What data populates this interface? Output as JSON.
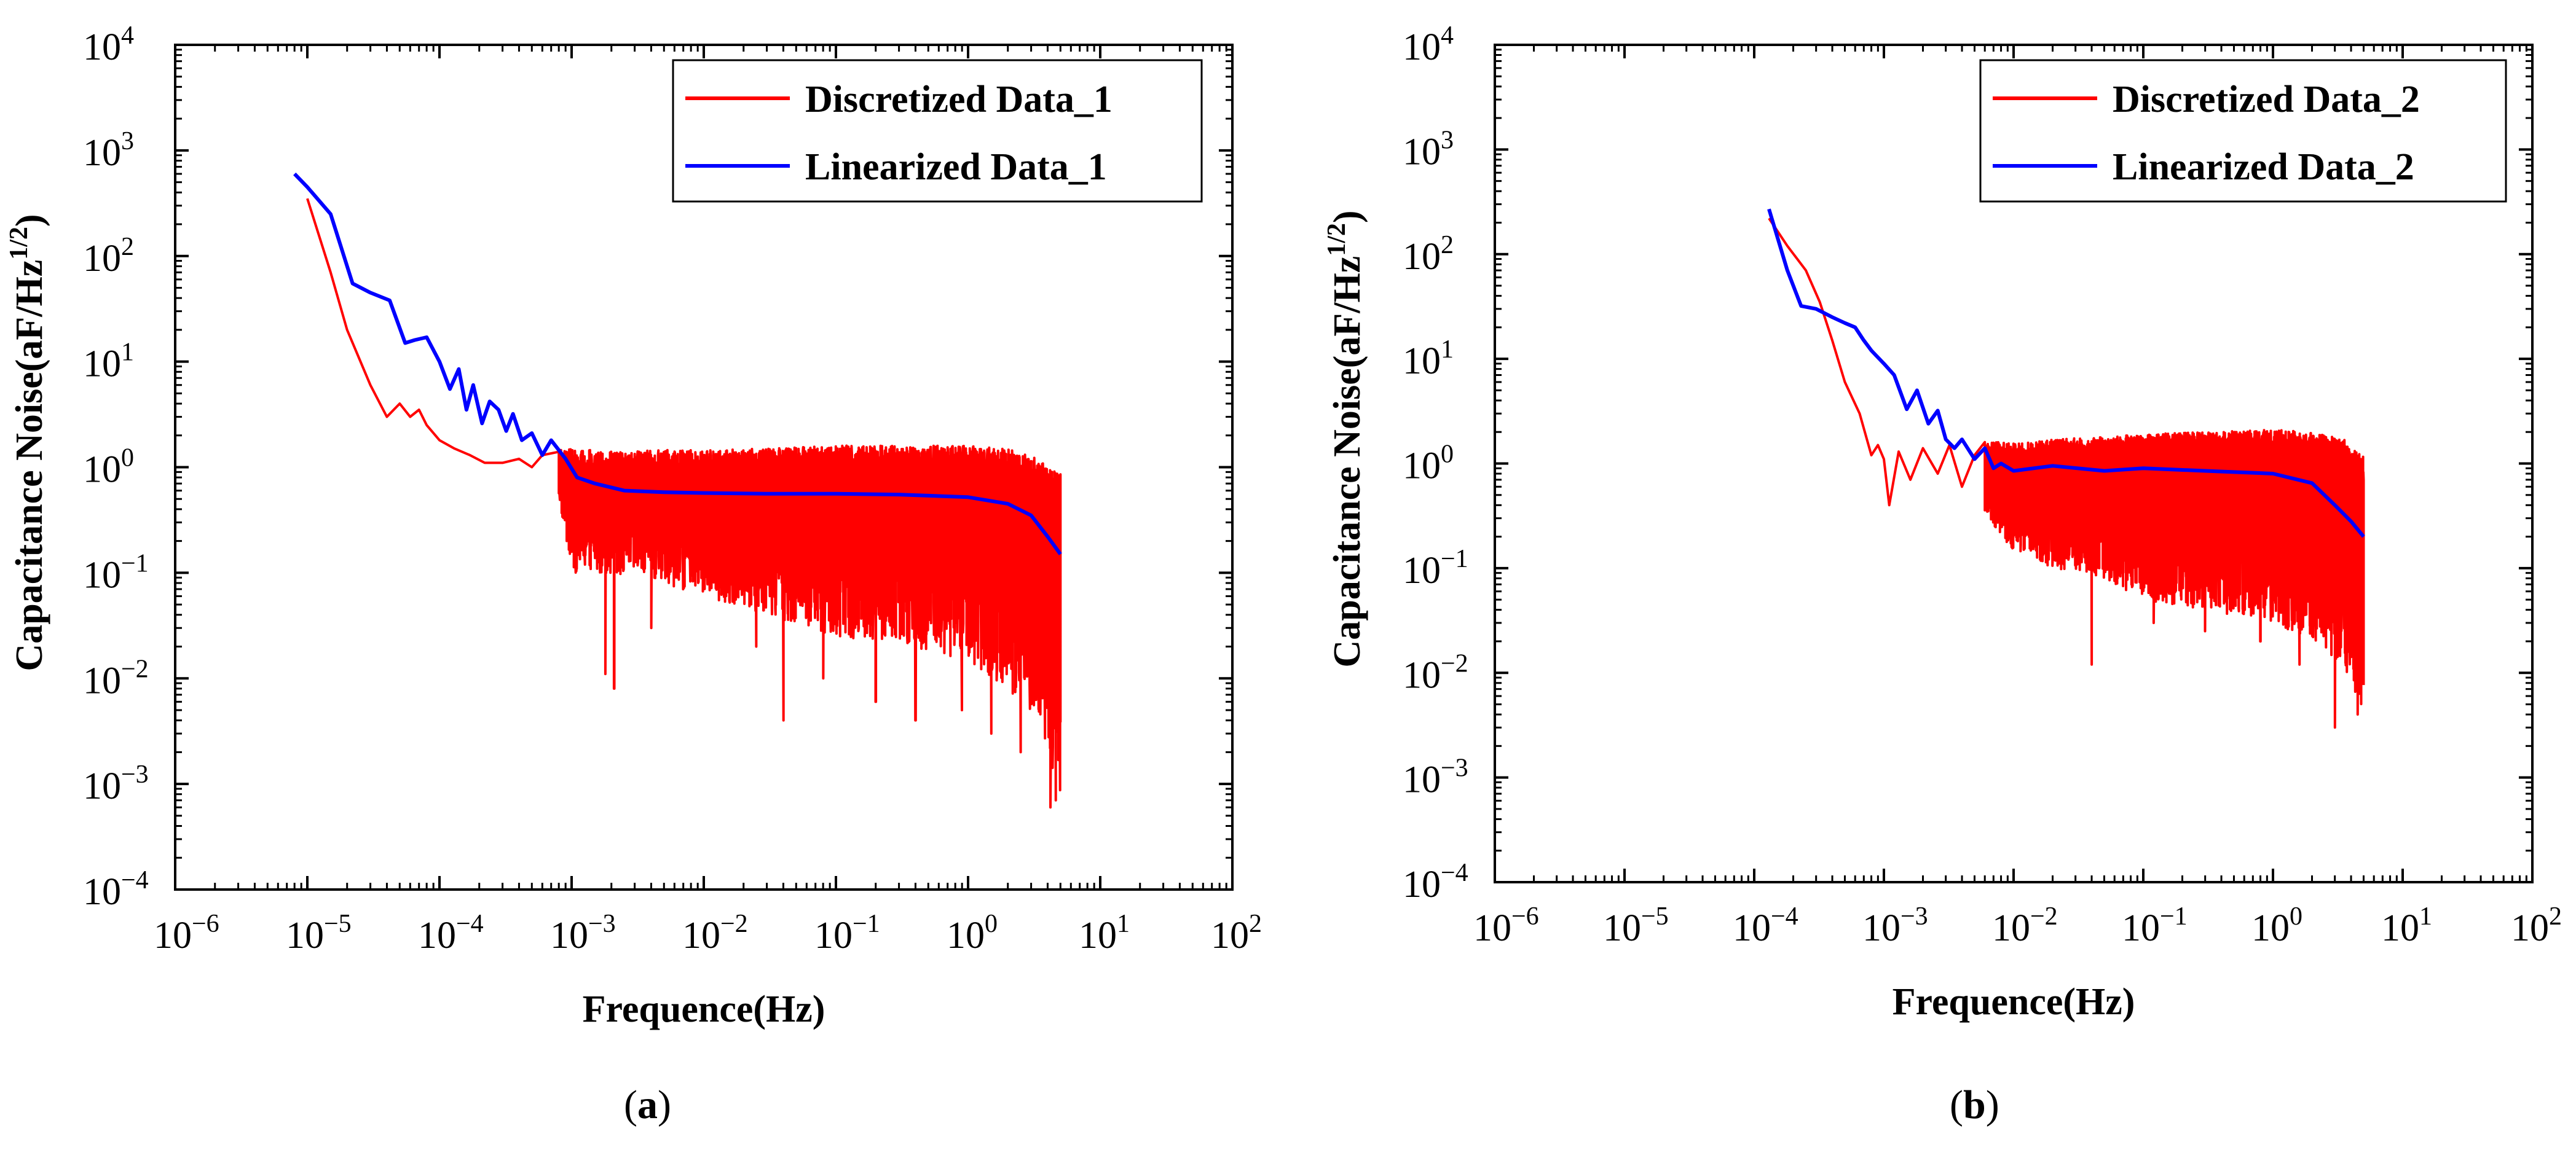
{
  "colors": {
    "discretized": "#ff0000",
    "linearized": "#0000ff",
    "axis": "#000000"
  },
  "chart_data": [
    {
      "type": "line",
      "panel": "(a)",
      "panel_letter": "a",
      "xlabel": "Frequence(Hz)",
      "ylabel": "Capacitance Noise(aF/Hz",
      "ylabel_exp": "1/2",
      "ylabel_close": ")",
      "xscale": "log",
      "yscale": "log",
      "xlim": [
        1e-06,
        100
      ],
      "ylim": [
        0.0001,
        10000
      ],
      "x_ticks": [
        {
          "base": "10",
          "exp": "−6"
        },
        {
          "base": "10",
          "exp": "−5"
        },
        {
          "base": "10",
          "exp": "−4"
        },
        {
          "base": "10",
          "exp": "−3"
        },
        {
          "base": "10",
          "exp": "−2"
        },
        {
          "base": "10",
          "exp": "−1"
        },
        {
          "base": "10",
          "exp": "0"
        },
        {
          "base": "10",
          "exp": "1"
        },
        {
          "base": "10",
          "exp": "2"
        }
      ],
      "y_ticks": [
        {
          "base": "10",
          "exp": "−4"
        },
        {
          "base": "10",
          "exp": "−3"
        },
        {
          "base": "10",
          "exp": "−2"
        },
        {
          "base": "10",
          "exp": "−1"
        },
        {
          "base": "10",
          "exp": "0"
        },
        {
          "base": "10",
          "exp": "1"
        },
        {
          "base": "10",
          "exp": "2"
        },
        {
          "base": "10",
          "exp": "3"
        },
        {
          "base": "10",
          "exp": "4"
        }
      ],
      "legend_position": "top-right",
      "series": [
        {
          "name": "Discretized Data_1",
          "color": "#ff0000",
          "kind": "noisy-envelope",
          "x": [
            1e-05,
            1.5e-05,
            2e-05,
            3e-05,
            4e-05,
            5e-05,
            6e-05,
            7e-05,
            8e-05,
            0.0001,
            0.00013,
            0.00017,
            0.00022,
            0.0003,
            0.0004,
            0.0005,
            0.0006,
            0.0008
          ],
          "y": [
            350,
            70,
            20,
            6,
            3,
            4,
            3,
            3.5,
            2.5,
            1.8,
            1.5,
            1.3,
            1.1,
            1.1,
            1.2,
            1.0,
            1.3,
            1.4
          ],
          "band": {
            "x": [
              0.0008,
              0.001,
              0.002,
              0.005,
              0.01,
              0.03,
              0.1,
              0.3,
              1,
              2,
              3.5,
              5
            ],
            "upper": [
              1.5,
              1.5,
              1.4,
              1.45,
              1.45,
              1.5,
              1.6,
              1.6,
              1.6,
              1.5,
              1.2,
              0.9
            ],
            "lower": [
              0.5,
              0.1,
              0.1,
              0.08,
              0.06,
              0.04,
              0.025,
              0.02,
              0.015,
              0.008,
              0.004,
              0.0006
            ]
          },
          "dips": [
            [
              0.0018,
              0.011
            ],
            [
              0.0021,
              0.008
            ],
            [
              0.004,
              0.03
            ],
            [
              0.025,
              0.02
            ],
            [
              0.04,
              0.004
            ],
            [
              0.08,
              0.01
            ],
            [
              0.2,
              0.006
            ],
            [
              0.4,
              0.004
            ],
            [
              0.9,
              0.005
            ],
            [
              1.5,
              0.003
            ],
            [
              2.5,
              0.002
            ],
            [
              4.2,
              0.0006
            ],
            [
              4.6,
              0.0007
            ]
          ]
        },
        {
          "name": "Linearized Data_1",
          "color": "#0000ff",
          "kind": "line",
          "x": [
            8e-06,
            1e-05,
            1.5e-05,
            2.2e-05,
            3e-05,
            4.2e-05,
            5.5e-05,
            6.5e-05,
            8e-05,
            0.0001,
            0.00012,
            0.00014,
            0.00016,
            0.00018,
            0.00021,
            0.00024,
            0.00028,
            0.00032,
            0.00036,
            0.00042,
            0.0005,
            0.0006,
            0.0007,
            0.0009,
            0.0011,
            0.0015,
            0.0025,
            0.005,
            0.01,
            0.03,
            0.1,
            0.3,
            1,
            2,
            3,
            4,
            5
          ],
          "y": [
            600,
            450,
            250,
            55,
            45,
            38,
            15,
            16,
            17,
            10,
            5.5,
            8.5,
            3.5,
            6,
            2.6,
            4.2,
            3.5,
            2.2,
            3.2,
            1.8,
            2.1,
            1.3,
            1.8,
            1.2,
            0.8,
            0.7,
            0.6,
            0.58,
            0.57,
            0.56,
            0.56,
            0.55,
            0.52,
            0.45,
            0.35,
            0.22,
            0.15
          ]
        }
      ]
    },
    {
      "type": "line",
      "panel": "(b)",
      "panel_letter": "b",
      "xlabel": "Frequence(Hz)",
      "ylabel": "Capacitance Noise(aF/Hz",
      "ylabel_exp": "1/2",
      "ylabel_close": ")",
      "xscale": "log",
      "yscale": "log",
      "xlim": [
        1e-06,
        100
      ],
      "ylim": [
        0.0001,
        10000
      ],
      "x_ticks": [
        {
          "base": "10",
          "exp": "−6"
        },
        {
          "base": "10",
          "exp": "−5"
        },
        {
          "base": "10",
          "exp": "−4"
        },
        {
          "base": "10",
          "exp": "−3"
        },
        {
          "base": "10",
          "exp": "−2"
        },
        {
          "base": "10",
          "exp": "−1"
        },
        {
          "base": "10",
          "exp": "0"
        },
        {
          "base": "10",
          "exp": "1"
        },
        {
          "base": "10",
          "exp": "2"
        }
      ],
      "y_ticks": [
        {
          "base": "10",
          "exp": "−4"
        },
        {
          "base": "10",
          "exp": "−3"
        },
        {
          "base": "10",
          "exp": "−2"
        },
        {
          "base": "10",
          "exp": "−1"
        },
        {
          "base": "10",
          "exp": "0"
        },
        {
          "base": "10",
          "exp": "1"
        },
        {
          "base": "10",
          "exp": "2"
        },
        {
          "base": "10",
          "exp": "3"
        },
        {
          "base": "10",
          "exp": "4"
        }
      ],
      "legend_position": "top-right",
      "series": [
        {
          "name": "Discretized Data_2",
          "color": "#ff0000",
          "kind": "noisy-envelope",
          "x": [
            0.00013,
            0.00018,
            0.00025,
            0.00032,
            0.0004,
            0.0005,
            0.00065,
            0.0008,
            0.0009,
            0.001,
            0.0011,
            0.0013,
            0.0016,
            0.002,
            0.0026,
            0.0032,
            0.004,
            0.005,
            0.006
          ],
          "y": [
            220,
            120,
            70,
            35,
            15,
            6,
            3,
            1.2,
            1.5,
            1.1,
            0.4,
            1.3,
            0.7,
            1.4,
            0.8,
            1.5,
            0.6,
            1.2,
            1.6
          ],
          "band": {
            "x": [
              0.006,
              0.01,
              0.02,
              0.05,
              0.1,
              0.3,
              1,
              2,
              3.5,
              5
            ],
            "upper": [
              1.6,
              1.6,
              1.7,
              1.8,
              1.9,
              2.0,
              2.1,
              2.0,
              1.7,
              1.2
            ],
            "lower": [
              0.3,
              0.15,
              0.1,
              0.08,
              0.05,
              0.04,
              0.03,
              0.02,
              0.012,
              0.004
            ]
          },
          "dips": [
            [
              0.0035,
              0.25
            ],
            [
              0.005,
              0.2
            ],
            [
              0.012,
              0.15
            ],
            [
              0.04,
              0.012
            ],
            [
              0.12,
              0.03
            ],
            [
              0.3,
              0.025
            ],
            [
              0.8,
              0.02
            ],
            [
              1.6,
              0.012
            ],
            [
              3,
              0.003
            ],
            [
              4.5,
              0.004
            ]
          ]
        },
        {
          "name": "Linearized Data_2",
          "color": "#0000ff",
          "kind": "line",
          "x": [
            0.00013,
            0.00018,
            0.00023,
            0.0003,
            0.0004,
            0.0005,
            0.0006,
            0.0007,
            0.0008,
            0.001,
            0.0012,
            0.0015,
            0.0018,
            0.0022,
            0.0026,
            0.003,
            0.0035,
            0.004,
            0.005,
            0.006,
            0.007,
            0.008,
            0.01,
            0.02,
            0.05,
            0.1,
            0.3,
            1,
            2,
            3,
            4,
            5
          ],
          "y": [
            270,
            70,
            32,
            30,
            25,
            22,
            20,
            15,
            12,
            9,
            7,
            3.3,
            5,
            2.4,
            3.2,
            1.7,
            1.4,
            1.7,
            1.1,
            1.4,
            0.9,
            1.0,
            0.85,
            0.95,
            0.85,
            0.9,
            0.85,
            0.8,
            0.65,
            0.4,
            0.28,
            0.2
          ]
        }
      ]
    }
  ]
}
